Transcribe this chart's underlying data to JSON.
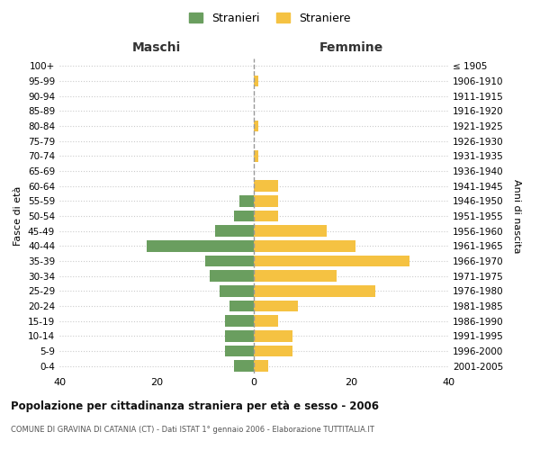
{
  "age_groups": [
    "0-4",
    "5-9",
    "10-14",
    "15-19",
    "20-24",
    "25-29",
    "30-34",
    "35-39",
    "40-44",
    "45-49",
    "50-54",
    "55-59",
    "60-64",
    "65-69",
    "70-74",
    "75-79",
    "80-84",
    "85-89",
    "90-94",
    "95-99",
    "100+"
  ],
  "birth_years": [
    "2001-2005",
    "1996-2000",
    "1991-1995",
    "1986-1990",
    "1981-1985",
    "1976-1980",
    "1971-1975",
    "1966-1970",
    "1961-1965",
    "1956-1960",
    "1951-1955",
    "1946-1950",
    "1941-1945",
    "1936-1940",
    "1931-1935",
    "1926-1930",
    "1921-1925",
    "1916-1920",
    "1911-1915",
    "1906-1910",
    "≤ 1905"
  ],
  "maschi": [
    4,
    6,
    6,
    6,
    5,
    7,
    9,
    10,
    22,
    8,
    4,
    3,
    0,
    0,
    0,
    0,
    0,
    0,
    0,
    0,
    0
  ],
  "femmine": [
    3,
    8,
    8,
    5,
    9,
    25,
    17,
    32,
    21,
    15,
    5,
    5,
    5,
    0,
    1,
    0,
    1,
    0,
    0,
    1,
    0
  ],
  "color_maschi": "#6a9e5f",
  "color_femmine": "#f5c242",
  "title": "Popolazione per cittadinanza straniera per età e sesso - 2006",
  "subtitle": "COMUNE DI GRAVINA DI CATANIA (CT) - Dati ISTAT 1° gennaio 2006 - Elaborazione TUTTITALIA.IT",
  "legend_maschi": "Stranieri",
  "legend_femmine": "Straniere",
  "xlabel_left": "Maschi",
  "xlabel_right": "Femmine",
  "ylabel_left": "Fasce di età",
  "ylabel_right": "Anni di nascita",
  "xlim": [
    -40,
    40
  ],
  "xticks": [
    -40,
    -20,
    0,
    20,
    40
  ],
  "xticklabels": [
    "40",
    "20",
    "0",
    "20",
    "40"
  ],
  "bg_color": "#ffffff"
}
